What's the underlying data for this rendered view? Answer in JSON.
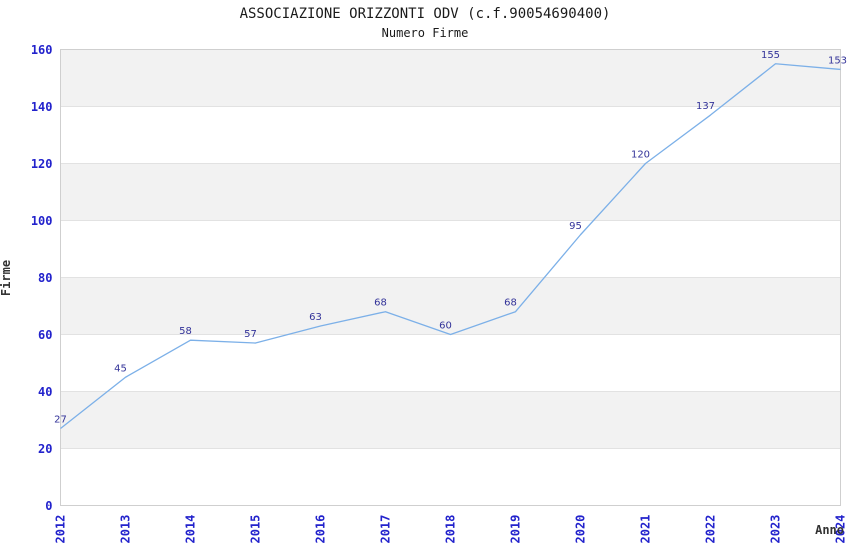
{
  "header": {
    "title": "ASSOCIAZIONE ORIZZONTI ODV (c.f.90054690400)",
    "subtitle": "Numero Firme"
  },
  "chart_data": {
    "type": "line",
    "title": "ASSOCIAZIONE ORIZZONTI ODV (c.f.90054690400)",
    "subtitle": "Numero Firme",
    "xlabel": "Anno",
    "ylabel": "Firme",
    "x": [
      2012,
      2013,
      2014,
      2015,
      2016,
      2017,
      2018,
      2019,
      2020,
      2021,
      2022,
      2023,
      2024
    ],
    "values": [
      27,
      45,
      58,
      57,
      63,
      68,
      60,
      68,
      95,
      120,
      137,
      155,
      153
    ],
    "ylim": [
      0,
      160
    ],
    "ytick_step": 20,
    "grid": true,
    "bands_alternating": true,
    "legend": false,
    "colors": {
      "line": "#7cb0e8",
      "data_label": "#333399",
      "tick_label": "#2222cc",
      "band_fill": "#f2f2f2",
      "band_alt_fill": "#ffffff",
      "gridline": "#e2e2e2",
      "plot_border": "#cfcfcf",
      "axis_title": "#333333",
      "title_text": "#1a1a1a"
    }
  }
}
